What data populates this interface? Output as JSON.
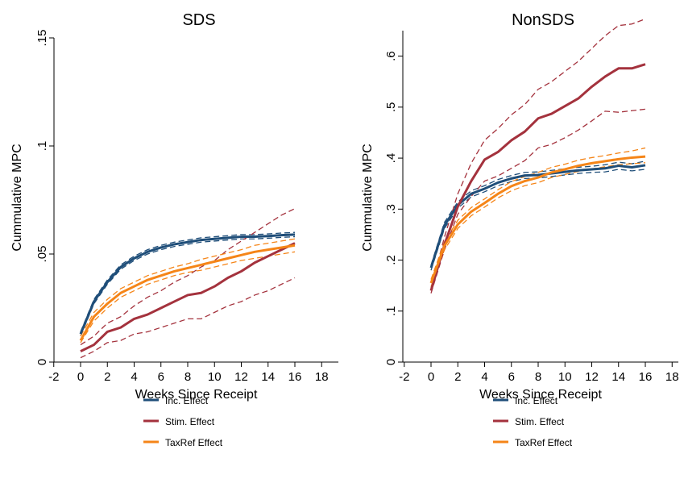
{
  "colors": {
    "inc": "#1f4e79",
    "stim": "#a4323d",
    "taxref": "#f58518",
    "axis": "#000000",
    "background": "#ffffff"
  },
  "chart_data": [
    {
      "type": "line",
      "title": "SDS",
      "xlabel": "Weeks Since Receipt",
      "ylabel": "Cummulative MPC",
      "xlim": [
        -2,
        18
      ],
      "ylim": [
        0,
        0.15
      ],
      "xticks": [
        "-2",
        "0",
        "2",
        "4",
        "6",
        "8",
        "10",
        "12",
        "14",
        "16",
        "18"
      ],
      "yticks": [
        "0",
        ".05",
        ".1",
        ".15"
      ],
      "grid": false,
      "legend": "bottom",
      "x": [
        0,
        1,
        2,
        3,
        4,
        5,
        6,
        7,
        8,
        9,
        10,
        11,
        12,
        13,
        14,
        15,
        16
      ],
      "series": [
        {
          "name": "Inc. Effect",
          "color_key": "inc",
          "values": [
            0.013,
            0.028,
            0.037,
            0.044,
            0.048,
            0.051,
            0.053,
            0.0545,
            0.0555,
            0.0565,
            0.057,
            0.0575,
            0.058,
            0.058,
            0.0583,
            0.0587,
            0.059
          ],
          "lower": [
            0.012,
            0.027,
            0.036,
            0.043,
            0.047,
            0.05,
            0.052,
            0.0535,
            0.0545,
            0.0555,
            0.056,
            0.0565,
            0.057,
            0.057,
            0.0573,
            0.0577,
            0.058
          ],
          "upper": [
            0.014,
            0.029,
            0.038,
            0.045,
            0.049,
            0.052,
            0.054,
            0.0555,
            0.0565,
            0.0575,
            0.058,
            0.0585,
            0.059,
            0.059,
            0.0593,
            0.0597,
            0.06
          ]
        },
        {
          "name": "Stim. Effect",
          "color_key": "stim",
          "values": [
            0.005,
            0.008,
            0.014,
            0.016,
            0.02,
            0.022,
            0.025,
            0.028,
            0.031,
            0.032,
            0.035,
            0.039,
            0.042,
            0.046,
            0.049,
            0.052,
            0.055
          ],
          "lower": [
            0.002,
            0.005,
            0.009,
            0.01,
            0.013,
            0.014,
            0.016,
            0.018,
            0.02,
            0.02,
            0.023,
            0.026,
            0.028,
            0.031,
            0.033,
            0.036,
            0.039
          ],
          "upper": [
            0.008,
            0.012,
            0.018,
            0.021,
            0.026,
            0.03,
            0.033,
            0.037,
            0.04,
            0.044,
            0.047,
            0.052,
            0.056,
            0.06,
            0.064,
            0.068,
            0.071
          ]
        },
        {
          "name": "TaxRef Effect",
          "color_key": "taxref",
          "values": [
            0.01,
            0.021,
            0.027,
            0.032,
            0.035,
            0.038,
            0.04,
            0.042,
            0.0435,
            0.045,
            0.0465,
            0.048,
            0.0495,
            0.051,
            0.052,
            0.053,
            0.054
          ],
          "lower": [
            0.009,
            0.019,
            0.025,
            0.03,
            0.033,
            0.036,
            0.038,
            0.04,
            0.0415,
            0.0425,
            0.044,
            0.0455,
            0.047,
            0.048,
            0.049,
            0.05,
            0.051
          ],
          "upper": [
            0.012,
            0.023,
            0.029,
            0.034,
            0.037,
            0.04,
            0.042,
            0.044,
            0.0455,
            0.0475,
            0.049,
            0.0505,
            0.052,
            0.054,
            0.055,
            0.056,
            0.057
          ]
        }
      ]
    },
    {
      "type": "line",
      "title": "NonSDS",
      "xlabel": "Weeks Since Receipt",
      "ylabel": "Cummulative MPC",
      "xlim": [
        -2,
        18
      ],
      "ylim": [
        0,
        0.65
      ],
      "xticks": [
        "-2",
        "0",
        "2",
        "4",
        "6",
        "8",
        "10",
        "12",
        "14",
        "16",
        "18"
      ],
      "yticks": [
        "0",
        ".1",
        ".2",
        ".3",
        ".4",
        ".5",
        ".6"
      ],
      "grid": false,
      "legend": "bottom",
      "x": [
        0,
        1,
        2,
        3,
        4,
        5,
        6,
        7,
        8,
        9,
        10,
        11,
        12,
        13,
        14,
        15,
        16
      ],
      "series": [
        {
          "name": "Inc. Effect",
          "color_key": "inc",
          "values": [
            0.185,
            0.268,
            0.308,
            0.33,
            0.34,
            0.352,
            0.36,
            0.366,
            0.367,
            0.37,
            0.373,
            0.376,
            0.378,
            0.38,
            0.385,
            0.382,
            0.386
          ],
          "lower": [
            0.18,
            0.262,
            0.302,
            0.324,
            0.334,
            0.346,
            0.354,
            0.36,
            0.361,
            0.364,
            0.367,
            0.37,
            0.372,
            0.373,
            0.378,
            0.375,
            0.378
          ],
          "upper": [
            0.19,
            0.274,
            0.314,
            0.336,
            0.346,
            0.358,
            0.366,
            0.372,
            0.373,
            0.376,
            0.379,
            0.382,
            0.384,
            0.387,
            0.392,
            0.389,
            0.394
          ]
        },
        {
          "name": "Stim. Effect",
          "color_key": "stim",
          "values": [
            0.14,
            0.23,
            0.305,
            0.355,
            0.397,
            0.412,
            0.435,
            0.452,
            0.478,
            0.487,
            0.502,
            0.517,
            0.54,
            0.56,
            0.576,
            0.576,
            0.584
          ],
          "lower": [
            0.135,
            0.22,
            0.29,
            0.325,
            0.355,
            0.365,
            0.38,
            0.395,
            0.42,
            0.427,
            0.44,
            0.455,
            0.473,
            0.492,
            0.49,
            0.493,
            0.496
          ],
          "upper": [
            0.145,
            0.245,
            0.33,
            0.39,
            0.435,
            0.458,
            0.485,
            0.505,
            0.535,
            0.55,
            0.57,
            0.59,
            0.615,
            0.64,
            0.66,
            0.663,
            0.673
          ]
        },
        {
          "name": "TaxRef Effect",
          "color_key": "taxref",
          "values": [
            0.155,
            0.228,
            0.27,
            0.295,
            0.312,
            0.33,
            0.345,
            0.355,
            0.362,
            0.372,
            0.378,
            0.385,
            0.39,
            0.394,
            0.398,
            0.401,
            0.403
          ],
          "lower": [
            0.148,
            0.22,
            0.262,
            0.287,
            0.304,
            0.322,
            0.336,
            0.346,
            0.352,
            0.362,
            0.368,
            0.374,
            0.379,
            0.383,
            0.387,
            0.389,
            0.391
          ],
          "upper": [
            0.162,
            0.236,
            0.278,
            0.303,
            0.32,
            0.338,
            0.354,
            0.364,
            0.372,
            0.382,
            0.388,
            0.396,
            0.401,
            0.405,
            0.41,
            0.414,
            0.42
          ]
        }
      ]
    }
  ]
}
